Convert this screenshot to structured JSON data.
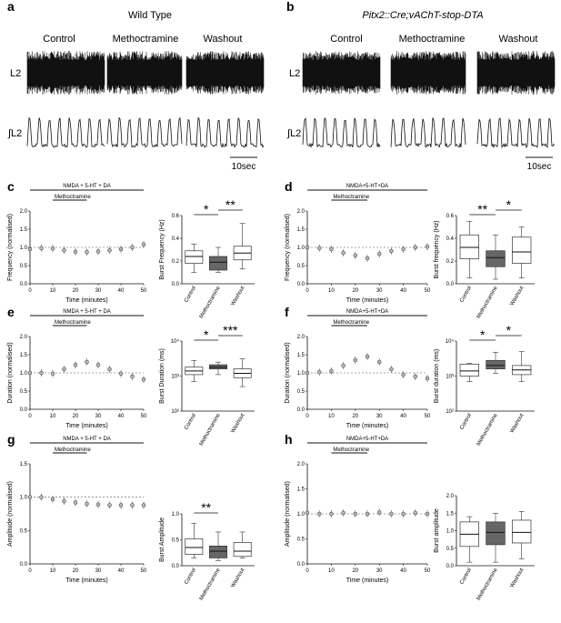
{
  "panels": [
    {
      "letter": "a",
      "group": "Wild Type",
      "group_italic": false,
      "conditions": [
        "Control",
        "Methoctramine",
        "Washout"
      ],
      "trace_labels": [
        "L2",
        "∫L2"
      ],
      "scale": "10sec"
    },
    {
      "letter": "b",
      "group": "Pitx2::Cre;vAChT-stop-DTA",
      "group_italic": true,
      "conditions": [
        "Control",
        "Methoctramine",
        "Washout"
      ],
      "trace_labels": [
        "L2",
        "∫L2"
      ],
      "scale": "10sec"
    }
  ],
  "chart_data": [
    {
      "id": "c",
      "type": "scatter",
      "bar_label": "NMDA + 5-HT + DA",
      "drug_label": "Methoctramine",
      "xlabel": "Time (minutes)",
      "ylabel": "Frequency (normalised)",
      "xlim": [
        0,
        50
      ],
      "ylim": [
        0,
        2.0
      ],
      "xticks": [
        0,
        10,
        20,
        30,
        40,
        50
      ],
      "yticks": [
        "0.0",
        "0.5",
        "1.0",
        "1.5",
        "2.0"
      ],
      "baseline": 1.0,
      "x": [
        0,
        5,
        10,
        15,
        20,
        25,
        30,
        35,
        40,
        45,
        50
      ],
      "y": [
        0.95,
        0.98,
        0.97,
        0.92,
        0.88,
        0.87,
        0.89,
        0.92,
        0.95,
        1.0,
        1.08
      ]
    },
    {
      "id": "c-box",
      "type": "box",
      "ylabel": "Burst Frequency (Hz)",
      "scale": "linear",
      "ylim": [
        0,
        0.6
      ],
      "yticks": [
        "0.0",
        "0.2",
        "0.4",
        "0.6"
      ],
      "categories": [
        "Control",
        "Methoctramine",
        "Washout"
      ],
      "boxes": [
        {
          "min": 0.1,
          "q1": 0.18,
          "median": 0.24,
          "q3": 0.29,
          "max": 0.35,
          "filled": false
        },
        {
          "min": 0.1,
          "q1": 0.12,
          "median": 0.19,
          "q3": 0.24,
          "max": 0.32,
          "filled": true
        },
        {
          "min": 0.13,
          "q1": 0.21,
          "median": 0.27,
          "q3": 0.33,
          "max": 0.53,
          "filled": false
        }
      ],
      "sig": [
        {
          "from": 0,
          "to": 1,
          "label": "*"
        },
        {
          "from": 1,
          "to": 2,
          "label": "**"
        }
      ]
    },
    {
      "id": "d",
      "type": "scatter",
      "bar_label": "NMDA+5-HT+DA",
      "drug_label": "Methoctramine",
      "xlabel": "Time (minutes)",
      "ylabel": "Frequency (normalised)",
      "xlim": [
        0,
        50
      ],
      "ylim": [
        0,
        2.0
      ],
      "xticks": [
        0,
        10,
        20,
        30,
        40,
        50
      ],
      "yticks": [
        "0.0",
        "0.5",
        "1.0",
        "1.5",
        "2.0"
      ],
      "baseline": 1.0,
      "x": [
        0,
        5,
        10,
        15,
        20,
        25,
        30,
        35,
        40,
        45,
        50
      ],
      "y": [
        1.0,
        0.98,
        0.95,
        0.85,
        0.78,
        0.7,
        0.82,
        0.9,
        0.95,
        1.0,
        1.02
      ]
    },
    {
      "id": "d-box",
      "type": "box",
      "ylabel": "Burst frequency (Hz)",
      "scale": "linear",
      "ylim": [
        0,
        0.6
      ],
      "yticks": [
        "0.0",
        "0.2",
        "0.4",
        "0.6"
      ],
      "categories": [
        "Control",
        "Methoctramine",
        "Washout"
      ],
      "boxes": [
        {
          "min": 0.05,
          "q1": 0.22,
          "median": 0.32,
          "q3": 0.43,
          "max": 0.55,
          "filled": false
        },
        {
          "min": 0.04,
          "q1": 0.15,
          "median": 0.23,
          "q3": 0.29,
          "max": 0.43,
          "filled": true
        },
        {
          "min": 0.05,
          "q1": 0.18,
          "median": 0.28,
          "q3": 0.41,
          "max": 0.5,
          "filled": false
        }
      ],
      "sig": [
        {
          "from": 0,
          "to": 1,
          "label": "**"
        },
        {
          "from": 1,
          "to": 2,
          "label": "*"
        }
      ]
    },
    {
      "id": "e",
      "type": "scatter",
      "bar_label": "NMDA + 5-HT + DA",
      "drug_label": "Methoctramine",
      "xlabel": "Time (minutes)",
      "ylabel": "Duration (normalised)",
      "xlim": [
        0,
        50
      ],
      "ylim": [
        0,
        2.0
      ],
      "xticks": [
        0,
        10,
        20,
        30,
        40,
        50
      ],
      "yticks": [
        "0.0",
        "0.5",
        "1.0",
        "1.5",
        "2.0"
      ],
      "baseline": 1.0,
      "x": [
        0,
        5,
        10,
        15,
        20,
        25,
        30,
        35,
        40,
        45,
        50
      ],
      "y": [
        1.0,
        1.0,
        0.98,
        1.1,
        1.22,
        1.3,
        1.22,
        1.1,
        0.98,
        0.9,
        0.82
      ]
    },
    {
      "id": "e-box",
      "type": "box",
      "ylabel": "Burst Duration (ms)",
      "scale": "log",
      "ylim": [
        100,
        10000
      ],
      "yticks": [
        "10²",
        "10³",
        "10⁴"
      ],
      "categories": [
        "Control",
        "Methoctramine",
        "Washout"
      ],
      "boxes": [
        {
          "min": 700,
          "q1": 1100,
          "median": 1400,
          "q3": 1800,
          "max": 2800,
          "filled": false
        },
        {
          "min": 1100,
          "q1": 1600,
          "median": 1800,
          "q3": 2100,
          "max": 2500,
          "filled": true
        },
        {
          "min": 500,
          "q1": 900,
          "median": 1200,
          "q3": 1600,
          "max": 3100,
          "filled": false
        }
      ],
      "sig": [
        {
          "from": 0,
          "to": 1,
          "label": "*"
        },
        {
          "from": 1,
          "to": 2,
          "label": "***"
        }
      ]
    },
    {
      "id": "f",
      "type": "scatter",
      "bar_label": "NMDA+5-HT+DA",
      "drug_label": "Methoctramine",
      "xlabel": "Time (minutes)",
      "ylabel": "Duration (normalised)",
      "xlim": [
        0,
        50
      ],
      "ylim": [
        0,
        2.0
      ],
      "xticks": [
        0,
        10,
        20,
        30,
        40,
        50
      ],
      "yticks": [
        "0.0",
        "0.5",
        "1.0",
        "1.5",
        "2.0"
      ],
      "baseline": 1.0,
      "x": [
        0,
        5,
        10,
        15,
        20,
        25,
        30,
        35,
        40,
        45,
        50
      ],
      "y": [
        1.0,
        1.02,
        1.05,
        1.2,
        1.35,
        1.45,
        1.3,
        1.1,
        0.95,
        0.9,
        0.85
      ]
    },
    {
      "id": "f-box",
      "type": "box",
      "ylabel": "Burst duration (ms)",
      "scale": "log",
      "ylim": [
        100,
        10000
      ],
      "yticks": [
        "10²",
        "10³",
        "10⁴"
      ],
      "categories": [
        "Control",
        "Methoctramine",
        "Washout"
      ],
      "boxes": [
        {
          "min": 700,
          "q1": 1000,
          "median": 1400,
          "q3": 2200,
          "max": 2300,
          "filled": false
        },
        {
          "min": 1200,
          "q1": 1600,
          "median": 2000,
          "q3": 2800,
          "max": 4800,
          "filled": true
        },
        {
          "min": 700,
          "q1": 1100,
          "median": 1500,
          "q3": 2000,
          "max": 5000,
          "filled": false
        }
      ],
      "sig": [
        {
          "from": 0,
          "to": 1,
          "label": "*"
        },
        {
          "from": 1,
          "to": 2,
          "label": "*"
        }
      ]
    },
    {
      "id": "g",
      "type": "scatter",
      "bar_label": "NMDA + 5-HT + DA",
      "drug_label": "Methoctramine",
      "xlabel": "Time (minutes)",
      "ylabel": "Amplitude (normalised)",
      "xlim": [
        0,
        50
      ],
      "ylim": [
        0,
        1.5
      ],
      "xticks": [
        0,
        10,
        20,
        30,
        40,
        50
      ],
      "yticks": [
        "0.0",
        "0.5",
        "1.0",
        "1.5"
      ],
      "baseline": 1.0,
      "x": [
        0,
        5,
        10,
        15,
        20,
        25,
        30,
        35,
        40,
        45,
        50
      ],
      "y": [
        1.0,
        1.0,
        0.97,
        0.94,
        0.92,
        0.9,
        0.89,
        0.88,
        0.88,
        0.88,
        0.88
      ]
    },
    {
      "id": "g-box",
      "type": "box",
      "ylabel": "Burst Amplitude",
      "scale": "linear",
      "ylim": [
        0,
        1.0
      ],
      "yticks": [
        "0.0",
        "0.5",
        "1.0"
      ],
      "categories": [
        "Control",
        "Methoctramine",
        "Washout"
      ],
      "boxes": [
        {
          "min": 0.15,
          "q1": 0.22,
          "median": 0.35,
          "q3": 0.52,
          "max": 0.82,
          "filled": false
        },
        {
          "min": 0.1,
          "q1": 0.15,
          "median": 0.28,
          "q3": 0.38,
          "max": 0.65,
          "filled": true
        },
        {
          "min": 0.15,
          "q1": 0.18,
          "median": 0.28,
          "q3": 0.45,
          "max": 0.65,
          "filled": false
        }
      ],
      "sig": [
        {
          "from": 0,
          "to": 1,
          "label": "**"
        }
      ]
    },
    {
      "id": "h",
      "type": "scatter",
      "bar_label": "NMDA+5-HT+DA",
      "drug_label": "Methoctramine",
      "xlabel": "Time (minutes)",
      "ylabel": "Amplitude (normalised)",
      "xlim": [
        0,
        50
      ],
      "ylim": [
        0,
        2.0
      ],
      "xticks": [
        0,
        10,
        20,
        30,
        40,
        50
      ],
      "yticks": [
        "0.0",
        "0.5",
        "1.0",
        "1.5",
        "2.0"
      ],
      "baseline": 1.0,
      "x": [
        0,
        5,
        10,
        15,
        20,
        25,
        30,
        35,
        40,
        45,
        50
      ],
      "y": [
        1.02,
        1.0,
        1.0,
        1.02,
        1.0,
        1.0,
        1.03,
        1.0,
        1.0,
        1.02,
        1.0
      ]
    },
    {
      "id": "h-box",
      "type": "box",
      "ylabel": "Burst amplitude",
      "scale": "linear",
      "ylim": [
        0,
        2.0
      ],
      "yticks": [
        "0.0",
        "0.5",
        "1.0",
        "1.5",
        "2.0"
      ],
      "categories": [
        "Control",
        "Methoctramine",
        "Washout"
      ],
      "boxes": [
        {
          "min": 0.1,
          "q1": 0.55,
          "median": 0.9,
          "q3": 1.25,
          "max": 1.4,
          "filled": false
        },
        {
          "min": 0.1,
          "q1": 0.6,
          "median": 0.95,
          "q3": 1.25,
          "max": 1.5,
          "filled": true
        },
        {
          "min": 0.2,
          "q1": 0.65,
          "median": 0.95,
          "q3": 1.3,
          "max": 1.55,
          "filled": false
        }
      ],
      "sig": []
    }
  ]
}
